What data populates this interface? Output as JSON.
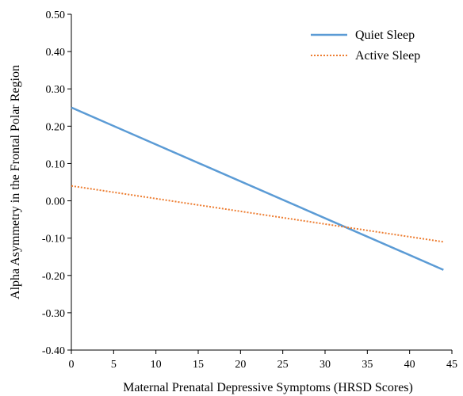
{
  "chart_data": {
    "type": "line",
    "xlabel": "Maternal Prenatal Depressive Symptoms (HRSD Scores)",
    "ylabel": "Alpha Asymmetry in the Frontal Polar Region",
    "xlim": [
      0,
      45
    ],
    "ylim": [
      -0.4,
      0.5
    ],
    "x_ticks": [
      "0",
      "5",
      "10",
      "15",
      "20",
      "25",
      "30",
      "35",
      "40",
      "45"
    ],
    "y_ticks": [
      "0.50",
      "0.40",
      "0.30",
      "0.20",
      "0.10",
      "0.00",
      "-0.10",
      "-0.20",
      "-0.30",
      "-0.40"
    ],
    "grid": false,
    "legend_position": "top-right",
    "series": [
      {
        "name": "Quiet Sleep",
        "x": [
          0,
          44
        ],
        "y": [
          0.25,
          -0.185
        ],
        "color": "#5B9BD5",
        "style": "solid"
      },
      {
        "name": "Active Sleep",
        "x": [
          0,
          44
        ],
        "y": [
          0.04,
          -0.11
        ],
        "color": "#ED7D31",
        "style": "dotted"
      }
    ]
  }
}
